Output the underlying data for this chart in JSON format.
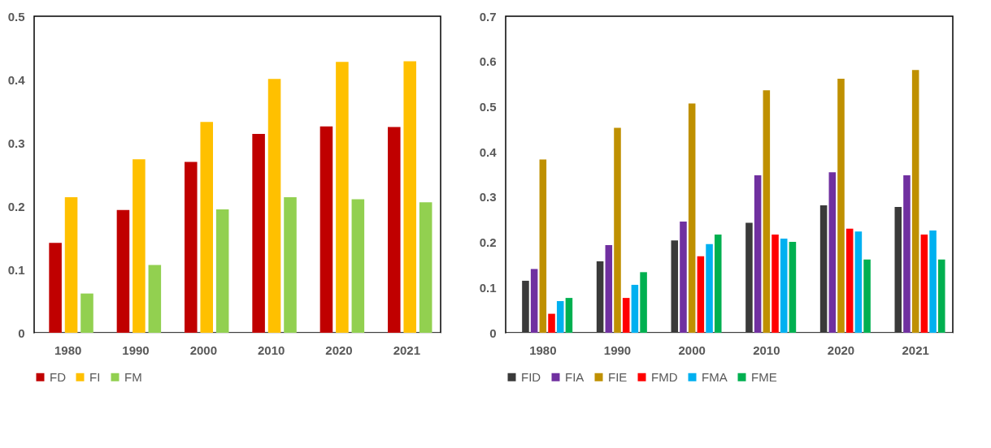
{
  "chart_data": [
    {
      "type": "bar",
      "categories": [
        "1980",
        "1990",
        "2000",
        "2010",
        "2020",
        "2021"
      ],
      "ylim": [
        0,
        0.5
      ],
      "yticks": [
        0,
        0.1,
        0.2,
        0.3,
        0.4,
        0.5
      ],
      "legend": "bottom",
      "grid": false,
      "series": [
        {
          "name": "FD",
          "color": "#c00000",
          "values": [
            0.142,
            0.194,
            0.27,
            0.314,
            0.326,
            0.325
          ]
        },
        {
          "name": "FI",
          "color": "#ffc000",
          "values": [
            0.214,
            0.274,
            0.333,
            0.401,
            0.428,
            0.429
          ]
        },
        {
          "name": "FM",
          "color": "#92d050",
          "values": [
            0.062,
            0.107,
            0.195,
            0.214,
            0.211,
            0.206
          ]
        }
      ]
    },
    {
      "type": "bar",
      "categories": [
        "1980",
        "1990",
        "2000",
        "2010",
        "2020",
        "2021"
      ],
      "ylim": [
        0,
        0.7
      ],
      "yticks": [
        0,
        0.1,
        0.2,
        0.3,
        0.4,
        0.5,
        0.6,
        0.7
      ],
      "legend": "bottom",
      "grid": false,
      "series": [
        {
          "name": "FID",
          "color": "#3a3a3a",
          "values": [
            0.115,
            0.158,
            0.204,
            0.243,
            0.282,
            0.278
          ]
        },
        {
          "name": "FIA",
          "color": "#7030a0",
          "values": [
            0.141,
            0.194,
            0.246,
            0.348,
            0.355,
            0.348
          ]
        },
        {
          "name": "FIE",
          "color": "#bf9000",
          "values": [
            0.383,
            0.453,
            0.507,
            0.536,
            0.562,
            0.581
          ]
        },
        {
          "name": "FMD",
          "color": "#ff0000",
          "values": [
            0.042,
            0.077,
            0.169,
            0.217,
            0.23,
            0.217
          ]
        },
        {
          "name": "FMA",
          "color": "#00b0f0",
          "values": [
            0.07,
            0.106,
            0.196,
            0.208,
            0.224,
            0.226
          ]
        },
        {
          "name": "FME",
          "color": "#00b050",
          "values": [
            0.077,
            0.134,
            0.217,
            0.201,
            0.162,
            0.162
          ]
        }
      ]
    }
  ]
}
